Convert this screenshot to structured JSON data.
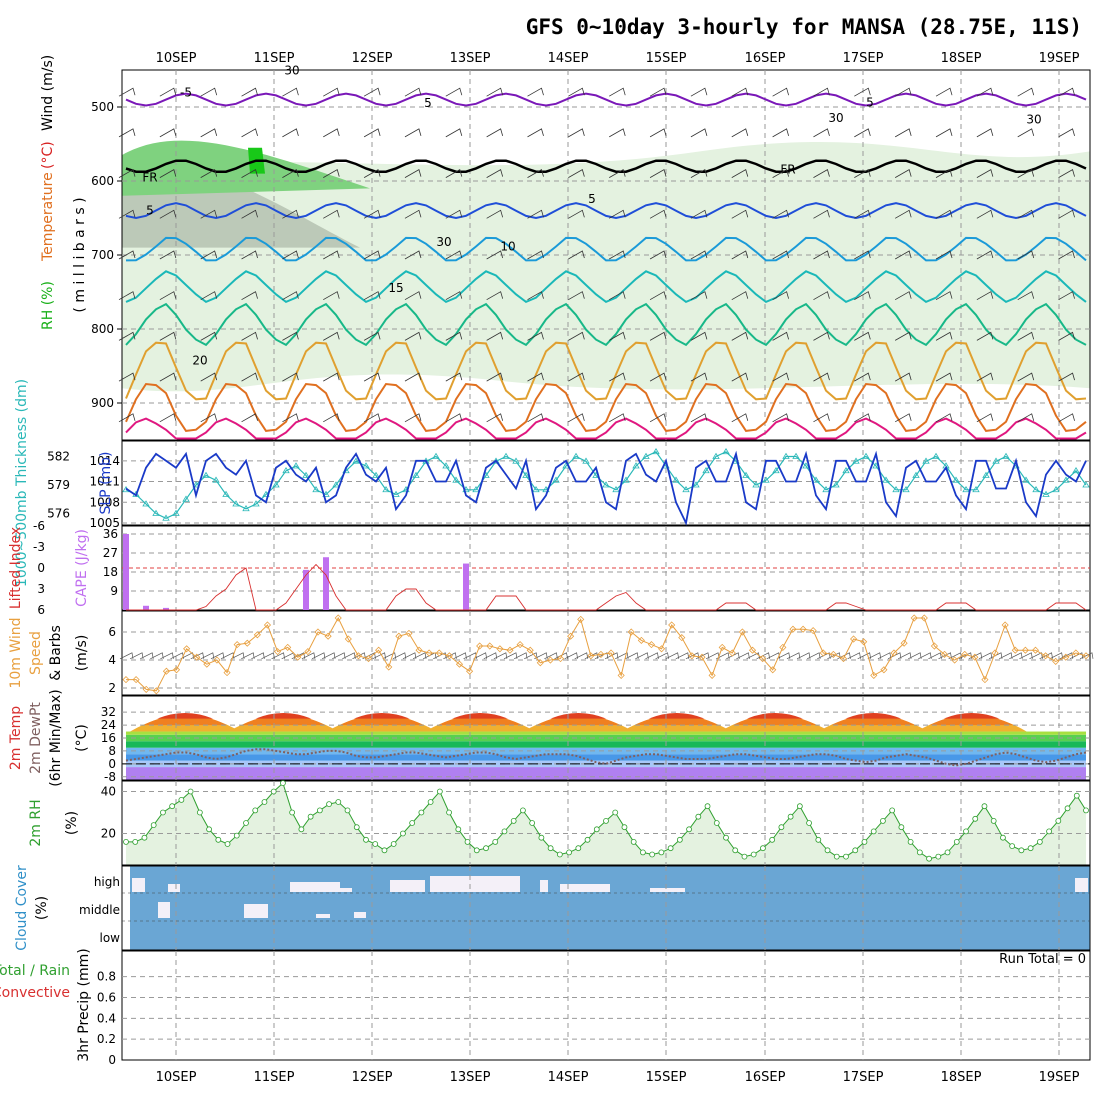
{
  "chart_data": {
    "type": "line",
    "title": "GFS 0~10day 3-hourly for MANSA (28.75E, 11S)",
    "dates": [
      "10SEP",
      "11SEP",
      "12SEP",
      "13SEP",
      "14SEP",
      "15SEP",
      "16SEP",
      "17SEP",
      "18SEP",
      "19SEP"
    ],
    "panels": {
      "upper_air": {
        "ylabel_parts": [
          "RH (%)",
          "Temperature",
          "(°C)",
          "Wind (m/s)"
        ],
        "axis_unit": "( m i l l i b a r s )",
        "ylim": [
          950,
          450
        ],
        "yticks": [
          500,
          600,
          700,
          800,
          900
        ],
        "contour_labels": [
          "-5",
          "5",
          "5",
          "30",
          "30",
          "FR",
          "FR",
          "5",
          "5",
          "30",
          "10",
          "15",
          "20",
          "30"
        ],
        "isotherms_celsius": [
          -5,
          0,
          5,
          10,
          15,
          20,
          25,
          30,
          35
        ]
      },
      "thickness_slp": {
        "ylabel_left": "1000~500mb Thickness (dm)",
        "ylabel_right": "SLP (mb)",
        "thickness_ticks": [
          576,
          579,
          582
        ],
        "slp_ticks": [
          1005,
          1008,
          1011,
          1014
        ],
        "slp_series": [
          1010,
          1009,
          1013,
          1015,
          1014,
          1013,
          1015,
          1009,
          1014,
          1015,
          1013,
          1012,
          1014,
          1009,
          1008,
          1013,
          1014,
          1012,
          1011,
          1013,
          1008,
          1009,
          1013,
          1015,
          1012,
          1011,
          1013,
          1007,
          1009,
          1014,
          1014,
          1011,
          1011,
          1014,
          1009,
          1008,
          1013,
          1014,
          1012,
          1010,
          1014,
          1007,
          1009,
          1013,
          1014,
          1011,
          1011,
          1013,
          1008,
          1007,
          1014,
          1015,
          1012,
          1011,
          1014,
          1008,
          1005,
          1013,
          1014,
          1011,
          1011,
          1015,
          1008,
          1007,
          1014,
          1014,
          1011,
          1011,
          1015,
          1009,
          1007,
          1014,
          1014,
          1011,
          1011,
          1015,
          1008,
          1006,
          1013,
          1014,
          1011,
          1011,
          1013,
          1009,
          1007,
          1014,
          1014,
          1010,
          1010,
          1014,
          1008,
          1006,
          1012,
          1014,
          1012,
          1011,
          1014
        ],
        "thickness_series": [
          578.5,
          578,
          577,
          576,
          575.5,
          576,
          577.5,
          579,
          580,
          579.5,
          578,
          577,
          576.5,
          577,
          578,
          579,
          580.5,
          581,
          580,
          578.5,
          578,
          579,
          580.5,
          581.5,
          581,
          580,
          578.5,
          578,
          578.5,
          580,
          581.5,
          582,
          581,
          579.5,
          578.5,
          578.5,
          580,
          581.5,
          582,
          581.5,
          580,
          578.5,
          578.5,
          579.5,
          581,
          582,
          581.5,
          580,
          579,
          578.5,
          579.5,
          581,
          582,
          582.5,
          581,
          579.5,
          578.5,
          579,
          580.5,
          582,
          582.5,
          581.5,
          580,
          579,
          579.5,
          580.5,
          582,
          582,
          581,
          579.5,
          578.5,
          579,
          580.5,
          581.5,
          582,
          581,
          579.5,
          578.5,
          578.5,
          580,
          581.5,
          582,
          581,
          579.5,
          578.5,
          578.5,
          580,
          581.5,
          582,
          581,
          579.5,
          578.5,
          578,
          578.5,
          579.5,
          580.5,
          579
        ]
      },
      "cape_li": {
        "ylabel_left": "Lifted Index",
        "ylabel_right": "CAPE (J/kg)",
        "li_ticks": [
          "-6",
          "-3",
          "0",
          "3",
          "6"
        ],
        "cape_ticks": [
          9,
          18,
          27,
          36
        ],
        "cape_bars": [
          {
            "i": 0,
            "v": 36
          },
          {
            "i": 1,
            "v": 2
          },
          {
            "i": 2,
            "v": 1
          },
          {
            "i": 9,
            "v": 19
          },
          {
            "i": 10,
            "v": 25
          },
          {
            "i": 17,
            "v": 22
          }
        ],
        "li_series": [
          6,
          6,
          6,
          6,
          6,
          6,
          6,
          6,
          5.5,
          4,
          3,
          1,
          0,
          6,
          6,
          6,
          5,
          3,
          1,
          -0.5,
          1,
          4,
          6,
          6,
          6,
          6,
          6,
          4,
          3,
          3,
          5,
          6,
          6,
          6,
          6,
          6,
          6,
          4,
          4,
          4,
          6,
          6,
          6,
          6,
          6,
          6,
          6,
          6,
          5,
          4,
          3.5,
          5,
          6,
          6,
          6,
          6,
          6,
          6,
          6,
          6,
          5,
          5,
          5,
          6,
          6,
          6,
          6,
          6,
          6,
          6,
          6,
          5,
          5,
          5.5,
          6,
          6,
          6,
          6,
          6,
          6,
          6,
          6,
          5,
          5,
          5,
          6,
          6,
          6,
          6,
          6,
          6,
          6,
          6,
          5,
          5,
          5,
          6
        ]
      },
      "wind10m": {
        "ylabel_parts": [
          "10m Wind",
          "Speed",
          "& Barbs",
          "(m/s)"
        ],
        "yticks": [
          2,
          4,
          6
        ],
        "ylim": [
          1.5,
          7.5
        ],
        "series": [
          2.6,
          2.6,
          1.9,
          1.8,
          3.2,
          3.3,
          4.8,
          4.2,
          3.7,
          4.0,
          3.1,
          5.1,
          5.2,
          5.8,
          6.5,
          4.6,
          4.9,
          4.2,
          4.6,
          6.0,
          5.7,
          7.0,
          5.5,
          4.3,
          4.1,
          4.7,
          3.5,
          5.7,
          5.9,
          4.7,
          4.5,
          4.5,
          4.3,
          3.7,
          3.2,
          5.0,
          5.0,
          4.8,
          4.7,
          5.1,
          4.7,
          3.8,
          4.0,
          4.1,
          5.7,
          6.9,
          4.3,
          4.4,
          4.5,
          2.9,
          6.0,
          5.4,
          5.1,
          4.8,
          6.5,
          5.6,
          4.3,
          4.2,
          2.9,
          4.9,
          4.5,
          6.0,
          4.7,
          4.1,
          3.3,
          4.9,
          6.2,
          6.2,
          6.1,
          4.5,
          4.4,
          4.1,
          5.5,
          5.3,
          2.9,
          3.3,
          4.5,
          5.2,
          7.0,
          7.0,
          5.0,
          4.4,
          4.0,
          4.4,
          4.2,
          2.6,
          4.5,
          6.5,
          4.7,
          4.7,
          4.7,
          4.3,
          3.9,
          4.2,
          4.5,
          4.3
        ]
      },
      "temp2m": {
        "ylabel_parts": [
          "2m Temp",
          "2m DewPt",
          "(6hr Min/Max)",
          "(°C)"
        ],
        "yticks": [
          "32",
          "24",
          "16",
          "8",
          "0",
          "-8"
        ],
        "temp_max_daily": [
          30,
          32,
          32,
          32,
          32,
          32,
          32,
          32,
          32
        ],
        "temp_min_daily": [
          20,
          20,
          20,
          20,
          20,
          20,
          20,
          20,
          20
        ],
        "dewpoint_series": [
          2,
          3,
          4,
          5,
          6,
          7,
          7,
          6,
          4,
          3,
          4,
          6,
          8,
          9,
          9,
          8,
          7,
          6,
          6,
          7,
          8,
          8,
          7,
          5,
          4,
          4,
          5,
          6,
          7,
          7,
          6,
          5,
          4,
          5,
          6,
          7,
          7,
          6,
          4,
          3,
          4,
          5,
          6,
          6,
          6,
          5,
          3,
          1,
          0,
          2,
          4,
          5,
          6,
          6,
          5,
          4,
          3,
          3,
          3,
          4,
          5,
          6,
          6,
          5,
          4,
          3,
          3,
          4,
          5,
          6,
          6,
          5,
          3,
          2,
          1,
          2,
          4,
          5,
          6,
          5,
          4,
          2,
          0,
          -1,
          0,
          2,
          4,
          6,
          7,
          6,
          4,
          2,
          1,
          2,
          4,
          6,
          7
        ]
      },
      "rh2m": {
        "ylabel_parts": [
          "2m RH",
          "(%)"
        ],
        "yticks": [
          20,
          40
        ],
        "ylim": [
          5,
          45
        ],
        "series": [
          16,
          16,
          18,
          24,
          30,
          33,
          36,
          40,
          30,
          22,
          17,
          15,
          19,
          25,
          31,
          35,
          40,
          44,
          30,
          22,
          28,
          31,
          34,
          35,
          31,
          23,
          17,
          15,
          12,
          15,
          20,
          25,
          30,
          35,
          40,
          30,
          22,
          16,
          12,
          13,
          16,
          21,
          26,
          31,
          25,
          18,
          13,
          10,
          11,
          13,
          17,
          22,
          26,
          30,
          23,
          16,
          11,
          10,
          11,
          13,
          17,
          22,
          28,
          33,
          25,
          18,
          12,
          9,
          10,
          13,
          17,
          23,
          28,
          33,
          25,
          17,
          12,
          9,
          9,
          12,
          16,
          21,
          26,
          31,
          23,
          16,
          11,
          8,
          9,
          11,
          16,
          21,
          27,
          33,
          26,
          18,
          14,
          12,
          13,
          16,
          21,
          26,
          32,
          38,
          31
        ]
      },
      "cloud": {
        "ylabel_parts": [
          "Cloud Cover",
          "(%)"
        ],
        "levels": [
          "high",
          "middle",
          "low"
        ],
        "color": "#6aa6d4"
      },
      "precip": {
        "ylabel_parts": [
          "Total / Rain",
          "Convective",
          "3hr Precip (mm)"
        ],
        "yticks": [
          "0",
          "0.2",
          "0.4",
          "0.6",
          "0.8"
        ],
        "run_total": "Run Total = 0"
      }
    }
  }
}
